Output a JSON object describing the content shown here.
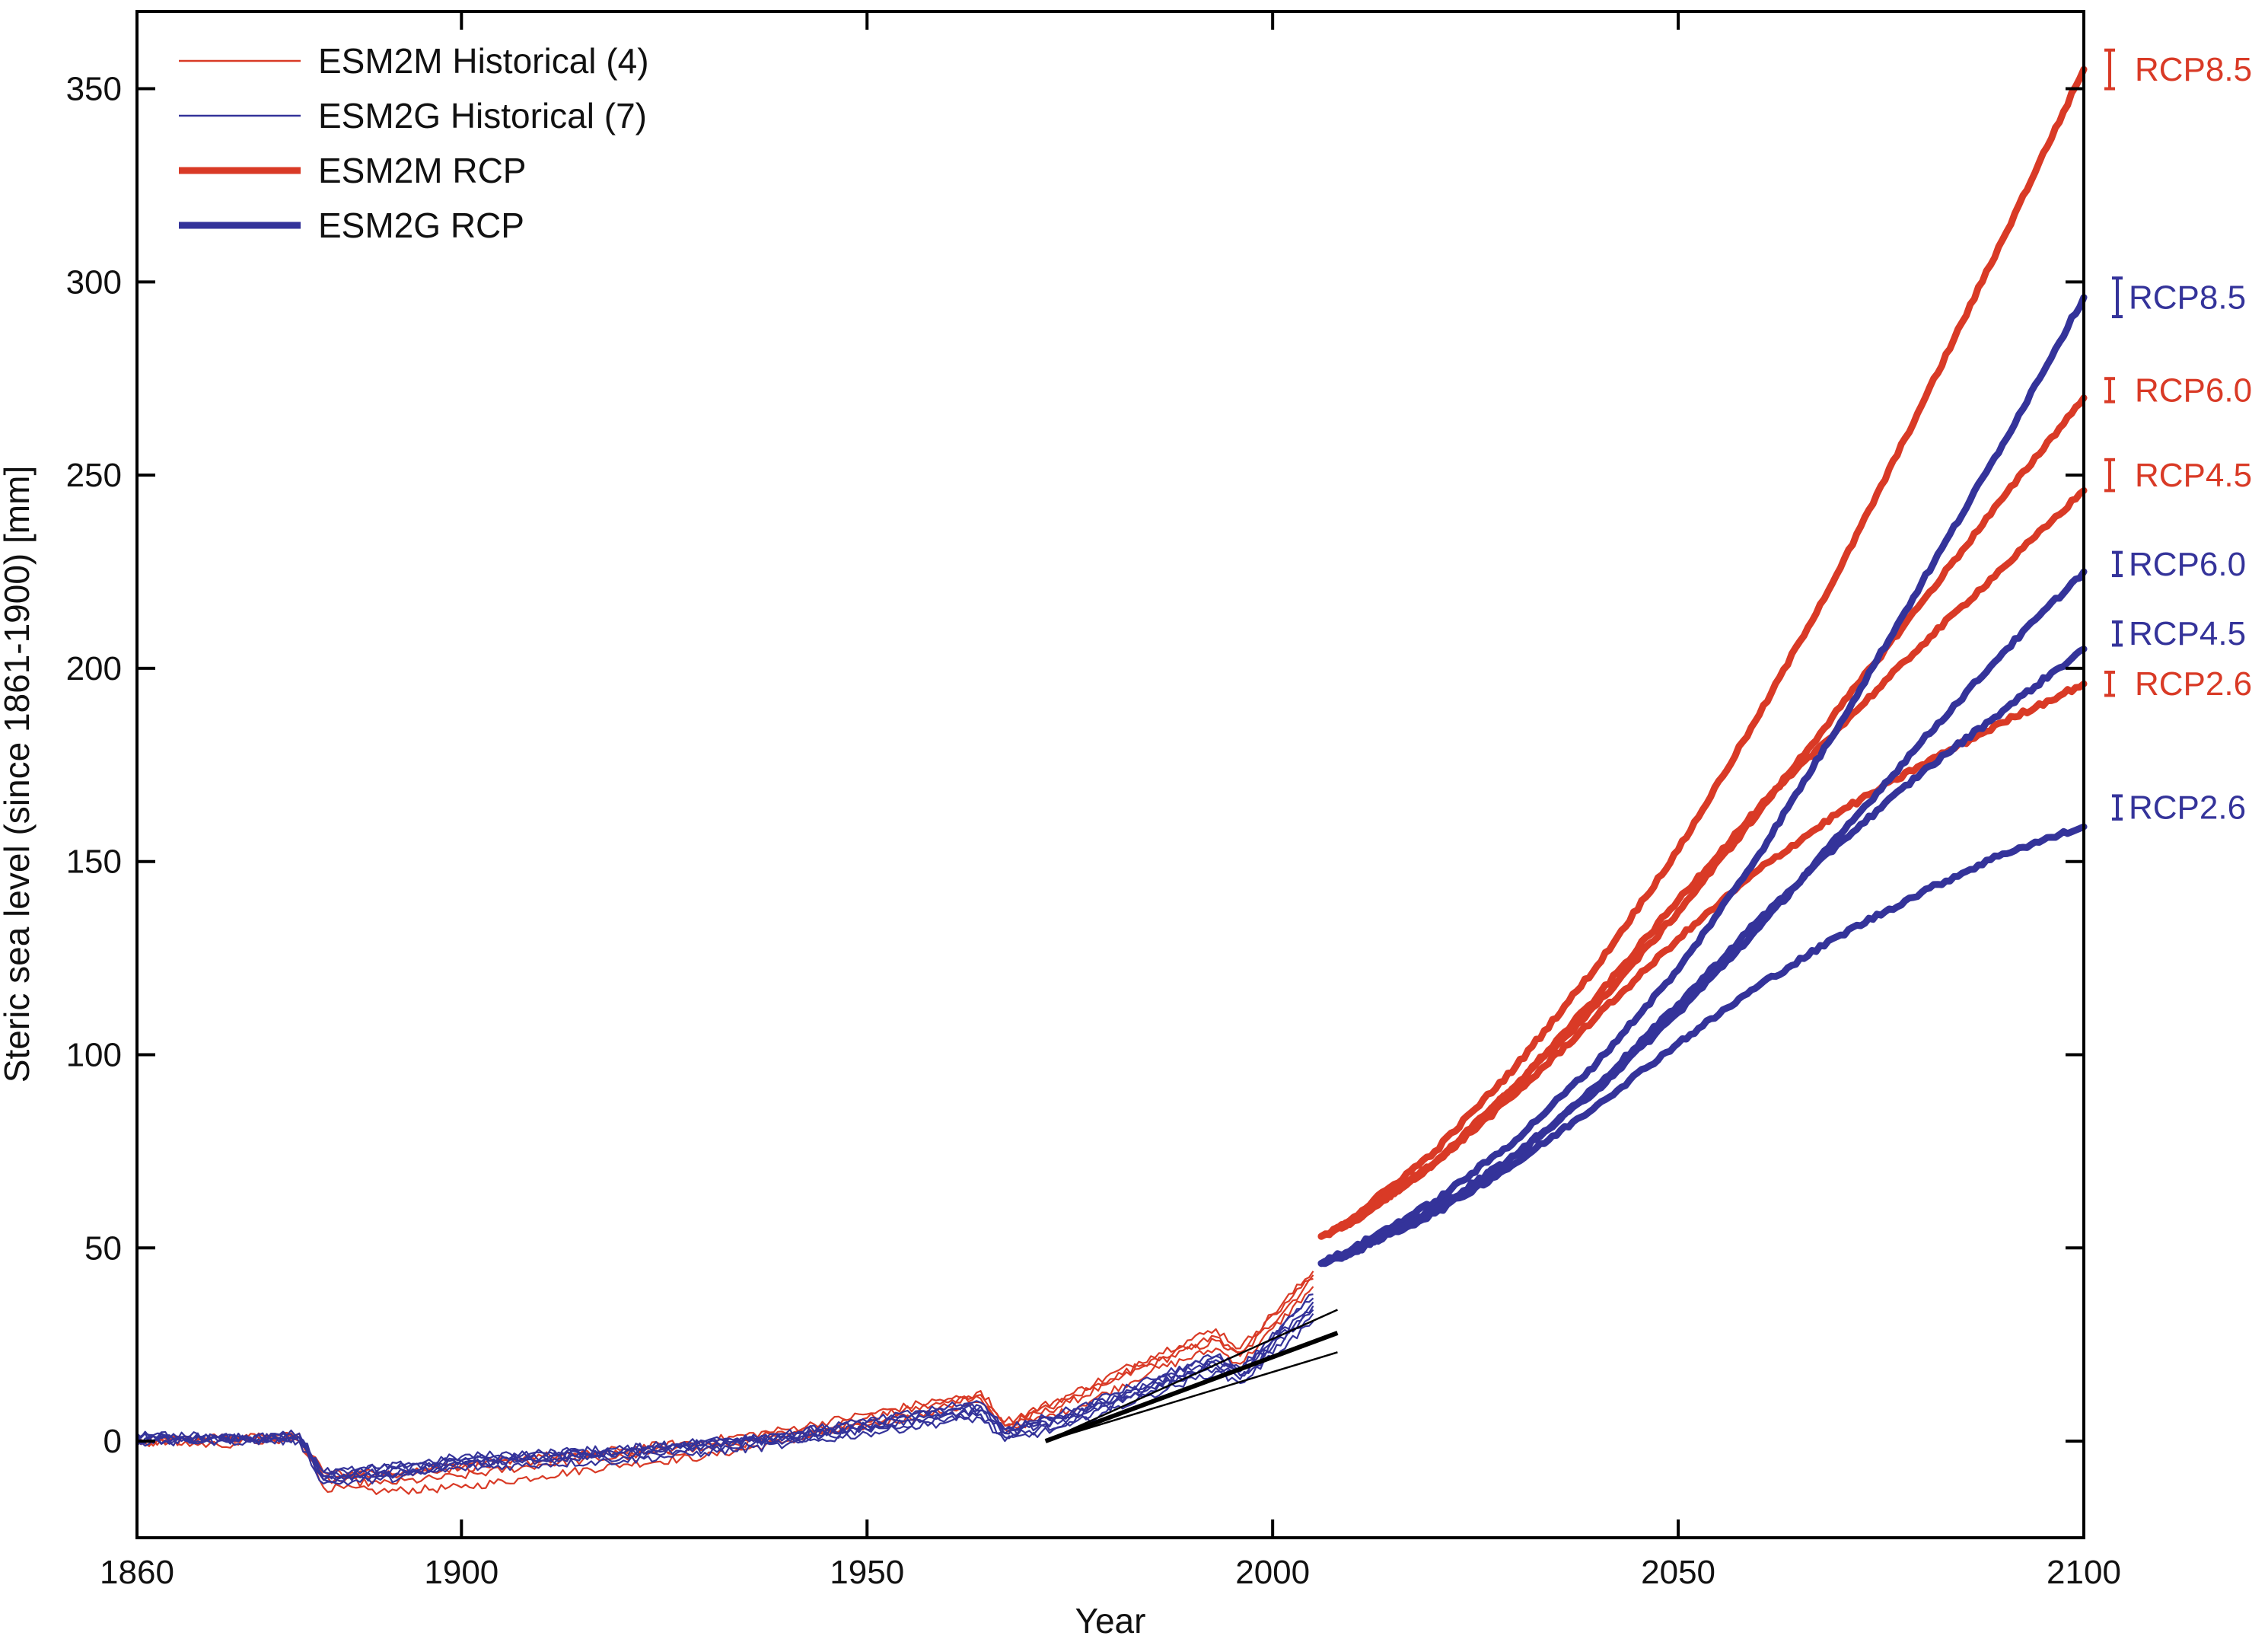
{
  "chart_data": {
    "type": "line",
    "title": "",
    "xlabel": "Year",
    "ylabel": "Steric sea level (since 1861-1900) [mm]",
    "xlim": [
      1860,
      2100
    ],
    "ylim": [
      -25,
      370
    ],
    "x_ticks": [
      1860,
      1900,
      1950,
      2000,
      2050,
      2100
    ],
    "y_ticks": [
      0,
      50,
      100,
      150,
      200,
      250,
      300,
      350
    ],
    "grid": false,
    "legend_position": "top-left",
    "colors": {
      "esm2m": "#d93a26",
      "esm2g": "#34339a",
      "obs": "#000000"
    },
    "legend": [
      {
        "label": "ESM2M Historical (4)",
        "color": "#d93a26",
        "style": "thin"
      },
      {
        "label": "ESM2G Historical (7)",
        "color": "#34339a",
        "style": "thin"
      },
      {
        "label": "ESM2M RCP",
        "color": "#d93a26",
        "style": "thick"
      },
      {
        "label": "ESM2G RCP",
        "color": "#34339a",
        "style": "thick"
      }
    ],
    "historical_series": [
      {
        "model": "ESM2M",
        "x": [
          1860,
          1870,
          1880,
          1883,
          1890,
          1900,
          1910,
          1920,
          1930,
          1940,
          1950,
          1960,
          1964,
          1967,
          1975,
          1985,
          1993,
          1996,
          2005
        ],
        "y": [
          0,
          1,
          1,
          -8,
          -9,
          -6,
          -4,
          -3,
          -1,
          2,
          6,
          10,
          12,
          4,
          10,
          20,
          26,
          22,
          42
        ]
      },
      {
        "model": "ESM2M",
        "x": [
          1860,
          1870,
          1880,
          1883,
          1890,
          1900,
          1910,
          1920,
          1930,
          1940,
          1950,
          1960,
          1964,
          1967,
          1975,
          1985,
          1993,
          1996,
          2005
        ],
        "y": [
          1,
          0,
          2,
          -12,
          -13,
          -12,
          -9,
          -6,
          -4,
          0,
          4,
          8,
          10,
          3,
          8,
          18,
          24,
          20,
          40
        ]
      },
      {
        "model": "ESM2M",
        "x": [
          1860,
          1870,
          1880,
          1883,
          1890,
          1900,
          1910,
          1920,
          1930,
          1940,
          1950,
          1960,
          1964,
          1967,
          1975,
          1985,
          1993,
          1996,
          2005
        ],
        "y": [
          -1,
          1,
          0,
          -10,
          -11,
          -9,
          -6,
          -4,
          -2,
          1,
          5,
          9,
          13,
          5,
          12,
          22,
          29,
          24,
          44
        ]
      },
      {
        "model": "ESM2M",
        "x": [
          1860,
          1870,
          1880,
          1883,
          1890,
          1900,
          1910,
          1920,
          1930,
          1940,
          1950,
          1960,
          1964,
          1967,
          1975,
          1985,
          1993,
          1996,
          2005
        ],
        "y": [
          0,
          -1,
          1,
          -9,
          -8,
          -7,
          -5,
          -2,
          0,
          3,
          7,
          11,
          11,
          4,
          11,
          21,
          27,
          23,
          43
        ]
      },
      {
        "model": "ESM2G",
        "x": [
          1860,
          1870,
          1880,
          1883,
          1890,
          1900,
          1910,
          1920,
          1930,
          1940,
          1950,
          1960,
          1964,
          1967,
          1975,
          1985,
          1993,
          1996,
          2005
        ],
        "y": [
          1,
          0,
          1,
          -9,
          -8,
          -5,
          -4,
          -3,
          -1,
          1,
          4,
          7,
          8,
          2,
          6,
          14,
          20,
          17,
          34
        ]
      },
      {
        "model": "ESM2G",
        "x": [
          1860,
          1870,
          1880,
          1883,
          1890,
          1900,
          1910,
          1920,
          1930,
          1940,
          1950,
          1960,
          1964,
          1967,
          1975,
          1985,
          1993,
          1996,
          2005
        ],
        "y": [
          0,
          1,
          0,
          -10,
          -9,
          -6,
          -5,
          -4,
          -2,
          0,
          3,
          6,
          7,
          1,
          5,
          13,
          19,
          16,
          33
        ]
      },
      {
        "model": "ESM2G",
        "x": [
          1860,
          1870,
          1880,
          1883,
          1890,
          1900,
          1910,
          1920,
          1930,
          1940,
          1950,
          1960,
          1964,
          1967,
          1975,
          1985,
          1993,
          1996,
          2005
        ],
        "y": [
          2,
          1,
          1,
          -8,
          -7,
          -4,
          -3,
          -2,
          0,
          2,
          5,
          8,
          9,
          3,
          7,
          15,
          21,
          18,
          36
        ]
      },
      {
        "model": "ESM2G",
        "x": [
          1860,
          1870,
          1880,
          1883,
          1890,
          1900,
          1910,
          1920,
          1930,
          1940,
          1950,
          1960,
          1964,
          1967,
          1975,
          1985,
          1993,
          1996,
          2005
        ],
        "y": [
          0,
          0,
          0,
          -11,
          -10,
          -7,
          -6,
          -5,
          -3,
          -1,
          2,
          5,
          6,
          0,
          4,
          12,
          18,
          15,
          31
        ]
      },
      {
        "model": "ESM2G",
        "x": [
          1860,
          1870,
          1880,
          1883,
          1890,
          1900,
          1910,
          1920,
          1930,
          1940,
          1950,
          1960,
          1964,
          1967,
          1975,
          1985,
          1993,
          1996,
          2005
        ],
        "y": [
          1,
          0,
          2,
          -9,
          -9,
          -6,
          -4,
          -3,
          -1,
          1,
          4,
          8,
          10,
          3,
          8,
          16,
          22,
          19,
          37
        ]
      },
      {
        "model": "ESM2G",
        "x": [
          1860,
          1870,
          1880,
          1883,
          1890,
          1900,
          1910,
          1920,
          1930,
          1940,
          1950,
          1960,
          1964,
          1967,
          1975,
          1985,
          1993,
          1996,
          2005
        ],
        "y": [
          -1,
          1,
          1,
          -10,
          -8,
          -5,
          -5,
          -3,
          -1,
          1,
          3,
          7,
          8,
          2,
          6,
          14,
          20,
          17,
          35
        ]
      },
      {
        "model": "ESM2G",
        "x": [
          1860,
          1870,
          1880,
          1883,
          1890,
          1900,
          1910,
          1920,
          1930,
          1940,
          1950,
          1960,
          1964,
          1967,
          1975,
          1985,
          1993,
          1996,
          2005
        ],
        "y": [
          1,
          1,
          0,
          -8,
          -7,
          -5,
          -3,
          -2,
          0,
          2,
          5,
          9,
          9,
          3,
          7,
          15,
          22,
          18,
          38
        ]
      }
    ],
    "rcp_series": [
      {
        "model": "ESM2M",
        "scenario": "RCP8.5",
        "x": [
          2006,
          2010,
          2020,
          2030,
          2040,
          2050,
          2060,
          2070,
          2080,
          2090,
          2100
        ],
        "y": [
          53,
          58,
          75,
          97,
          123,
          153,
          188,
          226,
          268,
          311,
          355
        ]
      },
      {
        "model": "ESM2M",
        "scenario": "RCP6.0",
        "x": [
          2006,
          2010,
          2020,
          2030,
          2040,
          2050,
          2060,
          2070,
          2080,
          2090,
          2100
        ],
        "y": [
          53,
          57,
          72,
          92,
          113,
          137,
          163,
          190,
          217,
          244,
          270
        ]
      },
      {
        "model": "ESM2M",
        "scenario": "RCP4.5",
        "x": [
          2006,
          2010,
          2020,
          2030,
          2040,
          2050,
          2060,
          2070,
          2080,
          2090,
          2100
        ],
        "y": [
          53,
          57,
          72,
          92,
          115,
          140,
          164,
          185,
          206,
          226,
          246
        ]
      },
      {
        "model": "ESM2M",
        "scenario": "RCP2.6",
        "x": [
          2006,
          2010,
          2020,
          2030,
          2040,
          2050,
          2060,
          2070,
          2080,
          2090,
          2100
        ],
        "y": [
          53,
          57,
          72,
          90,
          110,
          130,
          148,
          163,
          175,
          186,
          196
        ]
      },
      {
        "model": "ESM2G",
        "scenario": "RCP8.5",
        "x": [
          2006,
          2010,
          2020,
          2030,
          2040,
          2050,
          2060,
          2070,
          2080,
          2090,
          2100
        ],
        "y": [
          46,
          50,
          62,
          78,
          98,
          122,
          152,
          186,
          222,
          258,
          296
        ]
      },
      {
        "model": "ESM2G",
        "scenario": "RCP6.0",
        "x": [
          2006,
          2010,
          2020,
          2030,
          2040,
          2050,
          2060,
          2070,
          2080,
          2090,
          2100
        ],
        "y": [
          46,
          49,
          60,
          74,
          91,
          111,
          133,
          157,
          181,
          204,
          225
        ]
      },
      {
        "model": "ESM2G",
        "scenario": "RCP4.5",
        "x": [
          2006,
          2010,
          2020,
          2030,
          2040,
          2050,
          2060,
          2070,
          2080,
          2090,
          2100
        ],
        "y": [
          46,
          49,
          60,
          74,
          92,
          113,
          135,
          155,
          173,
          189,
          205
        ]
      },
      {
        "model": "ESM2G",
        "scenario": "RCP2.6",
        "x": [
          2006,
          2010,
          2020,
          2030,
          2040,
          2050,
          2060,
          2070,
          2080,
          2090,
          2100
        ],
        "y": [
          46,
          49,
          59,
          72,
          87,
          103,
          118,
          131,
          142,
          152,
          159
        ]
      }
    ],
    "observation_lines": [
      {
        "x": [
          1972,
          2008
        ],
        "y": [
          0,
          28
        ],
        "weight": "thick"
      },
      {
        "x": [
          1972,
          2008
        ],
        "y": [
          0,
          34
        ],
        "weight": "thin"
      },
      {
        "x": [
          1972,
          2008
        ],
        "y": [
          0,
          23
        ],
        "weight": "thin"
      }
    ],
    "rcp_labels": [
      {
        "text": "RCP8.5",
        "model": "ESM2M",
        "y": 355,
        "err_low": 350,
        "err_high": 360
      },
      {
        "text": "RCP8.5",
        "model": "ESM2G",
        "y": 296,
        "err_low": 291,
        "err_high": 301
      },
      {
        "text": "RCP6.0",
        "model": "ESM2M",
        "y": 272,
        "err_low": 269,
        "err_high": 275
      },
      {
        "text": "RCP4.5",
        "model": "ESM2M",
        "y": 250,
        "err_low": 246,
        "err_high": 254
      },
      {
        "text": "RCP6.0",
        "model": "ESM2G",
        "y": 227,
        "err_low": 224,
        "err_high": 230
      },
      {
        "text": "RCP4.5",
        "model": "ESM2G",
        "y": 209,
        "err_low": 206,
        "err_high": 212
      },
      {
        "text": "RCP2.6",
        "model": "ESM2M",
        "y": 196,
        "err_low": 193,
        "err_high": 199
      },
      {
        "text": "RCP2.6",
        "model": "ESM2G",
        "y": 164,
        "err_low": 161,
        "err_high": 167
      }
    ]
  }
}
